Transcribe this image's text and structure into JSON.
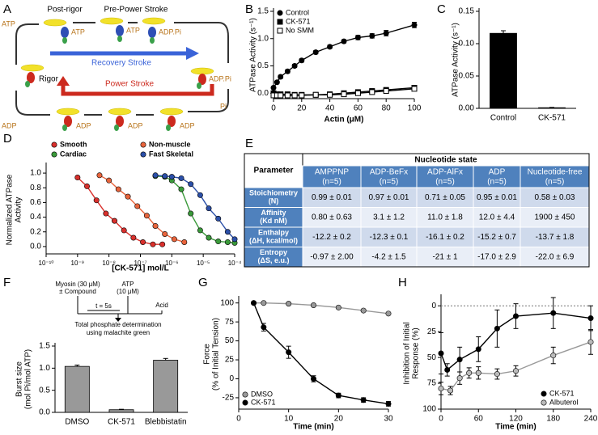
{
  "diagram": {
    "panel": "A",
    "states": [
      "Post-rigor",
      "Pre-Power Stroke",
      "Rigor"
    ],
    "strokes": [
      "Recovery Stroke",
      "Power Stroke"
    ],
    "nucleotides": [
      "ATP",
      "ATP",
      "ATP",
      "ADP.Pi",
      "ADP.Pi",
      "Pi",
      "ADP",
      "ADP",
      "ADP",
      "ADP"
    ]
  },
  "table": {
    "panel": "E",
    "header": "Parameter",
    "group": "Nucleotide state",
    "columns": [
      {
        "name": "AMPPNP",
        "n": "(n=5)"
      },
      {
        "name": "ADP-BeFx",
        "n": "(n=5)"
      },
      {
        "name": "ADP-AlFx",
        "n": "(n=5)"
      },
      {
        "name": "ADP",
        "n": "(n=5)"
      },
      {
        "name": "Nucleotide-free",
        "n": "(n=5)"
      }
    ],
    "rows": [
      {
        "label": [
          "Stoichiometry",
          "(N)"
        ],
        "cells": [
          "0.99 ± 0.01",
          "0.97 ± 0.01",
          "0.71 ± 0.05",
          "0.95 ± 0.01",
          "0.58 ± 0.03"
        ]
      },
      {
        "label": [
          "Affinity",
          "(Kd nM)"
        ],
        "cells": [
          "0.80 ± 0.63",
          "3.1 ± 1.2",
          "11.0 ± 1.8",
          "12.0 ± 4.4",
          "1900 ± 450"
        ]
      },
      {
        "label": [
          "Enthalpy",
          "(ΔH, kcal/mol)"
        ],
        "cells": [
          "-12.2 ± 0.2",
          "-12.3 ± 0.1",
          "-16.1 ± 0.2",
          "-15.2 ± 0.7",
          "-13.7 ± 1.8"
        ]
      },
      {
        "label": [
          "Entropy",
          "(ΔS, e.u.)"
        ],
        "cells": [
          "-0.97 ± 2.00",
          "-4.2 ± 1.5",
          "-21 ± 1",
          "-17.0 ± 2.9",
          "-22.0 ± 6.9"
        ]
      }
    ]
  },
  "schematic": {
    "myosin": "Myosin (30 μM)",
    "compound": "± Compound",
    "atp": "ATP",
    "atp_conc": "(10 μM)",
    "time": "t = 5s",
    "acid": "Acid",
    "readout": [
      "Total phosphate determination",
      "using malachite green"
    ]
  },
  "chart_data": [
    {
      "panel": "B",
      "type": "line",
      "xlabel": "Actin (μM)",
      "ylabel": [
        "ATPase Activity (s⁻¹)"
      ],
      "xlim": [
        0,
        100
      ],
      "xticks": [
        0,
        20,
        40,
        60,
        80,
        100
      ],
      "ylim": [
        -0.1,
        1.5
      ],
      "yticks": [
        {
          "value": 0,
          "label": "0.0"
        },
        0.5,
        {
          "value": 1,
          "label": "1.0"
        },
        1.5
      ],
      "legend": "upper-left",
      "series": [
        {
          "name": "Control",
          "color": "#000000",
          "marker": "circle",
          "x": [
            0,
            2.5,
            5,
            10,
            15,
            20,
            30,
            40,
            50,
            60,
            70,
            80,
            100
          ],
          "values": [
            0.1,
            0.2,
            0.3,
            0.4,
            0.5,
            0.6,
            0.75,
            0.85,
            0.95,
            1.02,
            1.05,
            1.1,
            1.25
          ],
          "errors": [
            0.02,
            0.02,
            0.03,
            0.03,
            0.03,
            0.03,
            0.03,
            0.03,
            0.03,
            0.04,
            0.04,
            0.05,
            0.05
          ]
        },
        {
          "name": "CK-571",
          "color": "#000000",
          "marker": "square",
          "x": [
            0,
            2.5,
            5,
            10,
            15,
            20,
            30,
            40,
            50,
            60,
            70,
            80,
            100
          ],
          "values": [
            0,
            -0.02,
            -0.02,
            -0.02,
            -0.03,
            -0.03,
            -0.03,
            -0.02,
            0,
            0.02,
            0.04,
            0.06,
            0.1
          ]
        },
        {
          "name": "No SMM",
          "color": "#000000",
          "marker": "open-square",
          "x": [
            0,
            2.5,
            5,
            10,
            15,
            20,
            30,
            40,
            50,
            60,
            70,
            80,
            100
          ],
          "values": [
            -0.04,
            -0.04,
            -0.04,
            -0.04,
            -0.04,
            -0.04,
            -0.03,
            -0.03,
            -0.02,
            0,
            0.02,
            0.04,
            0.08
          ]
        }
      ]
    },
    {
      "panel": "C",
      "type": "bar",
      "ylabel": [
        "ATPase Activity (s⁻¹)"
      ],
      "categories": [
        "Control",
        "CK-571"
      ],
      "values": [
        0.116,
        0.001
      ],
      "errors": [
        0.004,
        0.0005
      ],
      "colors": [
        "#000000",
        "#888888"
      ],
      "ylim": [
        0,
        0.15
      ],
      "yticks": [
        {
          "value": 0,
          "label": "0.00"
        },
        0.05,
        {
          "value": 0.1,
          "label": "0.10"
        },
        0.15
      ]
    },
    {
      "panel": "D",
      "type": "line",
      "xscale": "log",
      "xlabel": "[CK-571] mol/L",
      "ylabel": [
        "Normalized ATPase",
        "Activity"
      ],
      "xlim": [
        1e-10,
        0.0001
      ],
      "xticks": [
        {
          "value": 1e-10,
          "label": "10⁻¹⁰"
        },
        {
          "value": 1e-09,
          "label": "10⁻⁹"
        },
        {
          "value": 1e-08,
          "label": "10⁻⁸"
        },
        {
          "value": 1e-07,
          "label": "10⁻⁷"
        },
        {
          "value": 1e-06,
          "label": "10⁻⁶"
        },
        {
          "value": 1e-05,
          "label": "10⁻⁵"
        },
        {
          "value": 0.0001,
          "label": "10⁻⁴"
        }
      ],
      "ylim": [
        -0.1,
        1.1
      ],
      "yticks": [
        {
          "value": 0,
          "label": "0.0"
        },
        0.2,
        0.4,
        0.6,
        0.8,
        {
          "value": 1,
          "label": "1.0"
        }
      ],
      "legend": "top",
      "series": [
        {
          "name": "Smooth",
          "color": "#d9302c",
          "marker": "circle",
          "x": [
            1e-09,
            2e-09,
            4e-09,
            8e-09,
            1.5e-08,
            3e-08,
            6e-08,
            1.2e-07,
            2.5e-07,
            5e-07
          ],
          "values": [
            0.94,
            0.82,
            0.63,
            0.45,
            0.35,
            0.22,
            0.12,
            0.06,
            0.03,
            0.03
          ]
        },
        {
          "name": "Non-muscle",
          "color": "#e8643c",
          "marker": "circle",
          "x": [
            5e-09,
            1e-08,
            2e-08,
            4e-08,
            8e-08,
            1.6e-07,
            3e-07,
            6e-07,
            1.2e-06,
            2.5e-06
          ],
          "values": [
            0.97,
            0.9,
            0.78,
            0.68,
            0.55,
            0.42,
            0.28,
            0.17,
            0.1,
            0.06
          ]
        },
        {
          "name": "Cardiac",
          "color": "#3a9a3a",
          "marker": "circle",
          "x": [
            3e-07,
            6e-07,
            1e-06,
            2e-06,
            4e-06,
            8e-06,
            1.5e-05,
            3e-05,
            6e-05,
            0.0001
          ],
          "values": [
            0.96,
            0.95,
            0.9,
            0.78,
            0.45,
            0.22,
            0.12,
            0.07,
            0.06,
            0.05
          ]
        },
        {
          "name": "Fast Skeletal",
          "color": "#2b4fa8",
          "marker": "circle",
          "x": [
            3e-07,
            6e-07,
            1e-06,
            2e-06,
            4e-06,
            8e-06,
            1.5e-05,
            3e-05,
            6e-05,
            0.0001
          ],
          "values": [
            0.97,
            0.96,
            0.95,
            0.93,
            0.85,
            0.7,
            0.52,
            0.38,
            0.2,
            0.1
          ]
        }
      ]
    },
    {
      "panel": "F",
      "type": "bar",
      "ylabel": [
        "Burst size",
        "(mol Pi/mol ATP)"
      ],
      "categories": [
        "DMSO",
        "CK-571",
        "Blebbistatin"
      ],
      "values": [
        1.04,
        0.06,
        1.18
      ],
      "errors": [
        0.03,
        0.01,
        0.04
      ],
      "color": "#999999",
      "ylim": [
        0,
        1.5
      ],
      "yticks": [
        {
          "value": 0,
          "label": "0.0"
        },
        0.5,
        {
          "value": 1,
          "label": "1.0"
        },
        1.5
      ]
    },
    {
      "panel": "G",
      "type": "line",
      "xlabel": "Time (min)",
      "ylabel": [
        "Force",
        "(% of Initial Tension)"
      ],
      "xlim": [
        0,
        30
      ],
      "xticks": [
        0,
        10,
        20,
        30
      ],
      "ylim": [
        -40,
        105
      ],
      "yticks": [
        -25,
        0,
        25,
        50,
        75,
        100
      ],
      "legend": "lower-left",
      "series": [
        {
          "name": "DMSO",
          "color": "#999999",
          "marker": "circle",
          "x": [
            3,
            5,
            10,
            15,
            20,
            25,
            30
          ],
          "values": [
            100,
            100,
            99,
            97,
            94,
            90,
            86
          ],
          "errors": [
            0,
            1,
            1,
            1,
            1,
            1,
            1
          ]
        },
        {
          "name": "CK-571",
          "color": "#000000",
          "marker": "circle",
          "x": [
            3,
            5,
            10,
            15,
            20,
            25,
            30
          ],
          "values": [
            100,
            68,
            35,
            0,
            -22,
            -28,
            -33
          ],
          "errors": [
            0,
            5,
            8,
            4,
            3,
            3,
            3
          ]
        }
      ]
    },
    {
      "panel": "H",
      "type": "line",
      "xlabel": "Time (min)",
      "ylabel": [
        "Inhibition of Initial",
        "Response (%)"
      ],
      "xlim": [
        0,
        240
      ],
      "xticks": [
        0,
        60,
        120,
        180,
        240
      ],
      "ylim": [
        100,
        -8
      ],
      "yticks": [
        0,
        25,
        50,
        75,
        100
      ],
      "reference_line": 0,
      "legend": "lower-right",
      "series": [
        {
          "name": "CK-571",
          "color": "#000000",
          "marker": "circle",
          "x": [
            0,
            10,
            30,
            60,
            90,
            120,
            180,
            240
          ],
          "values": [
            46,
            62,
            52,
            42,
            22,
            10,
            7,
            12
          ],
          "errors": [
            20,
            6,
            12,
            12,
            18,
            12,
            15,
            12
          ]
        },
        {
          "name": "Albuterol",
          "color": "#bbbbbb",
          "marker": "circle",
          "x": [
            0,
            15,
            30,
            45,
            60,
            90,
            120,
            180,
            240
          ],
          "values": [
            80,
            82,
            70,
            65,
            65,
            66,
            63,
            48,
            35
          ],
          "errors": [
            6,
            4,
            6,
            5,
            6,
            5,
            5,
            8,
            12
          ]
        }
      ]
    }
  ]
}
